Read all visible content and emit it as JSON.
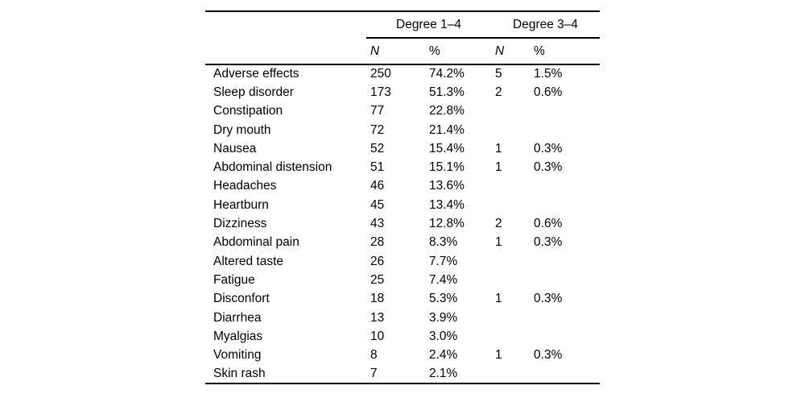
{
  "page": {
    "background": "#ffffff",
    "text_color": "#000000",
    "rule_color": "#000000"
  },
  "table": {
    "group_headers": [
      {
        "label": "Degree 1–4"
      },
      {
        "label": "Degree 3–4"
      }
    ],
    "sub_headers": [
      "N",
      "%",
      "N",
      "%"
    ],
    "rows": [
      {
        "label": "Adverse effects",
        "cells": [
          "250",
          "74.2%",
          "5",
          "1.5%"
        ]
      },
      {
        "label": "Sleep disorder",
        "cells": [
          "173",
          "51.3%",
          "2",
          "0.6%"
        ]
      },
      {
        "label": "Constipation",
        "cells": [
          "77",
          "22.8%",
          "",
          ""
        ]
      },
      {
        "label": "Dry mouth",
        "cells": [
          "72",
          "21.4%",
          "",
          ""
        ]
      },
      {
        "label": "Nausea",
        "cells": [
          "52",
          "15.4%",
          "1",
          "0.3%"
        ]
      },
      {
        "label": "Abdominal distension",
        "cells": [
          "51",
          "15.1%",
          "1",
          "0.3%"
        ]
      },
      {
        "label": "Headaches",
        "cells": [
          "46",
          "13.6%",
          "",
          ""
        ]
      },
      {
        "label": "Heartburn",
        "cells": [
          "45",
          "13.4%",
          "",
          ""
        ]
      },
      {
        "label": "Dizziness",
        "cells": [
          "43",
          "12.8%",
          "2",
          "0.6%"
        ]
      },
      {
        "label": "Abdominal pain",
        "cells": [
          "28",
          "8.3%",
          "1",
          "0.3%"
        ]
      },
      {
        "label": "Altered taste",
        "cells": [
          "26",
          "7.7%",
          "",
          ""
        ]
      },
      {
        "label": "Fatigue",
        "cells": [
          "25",
          "7.4%",
          "",
          ""
        ]
      },
      {
        "label": "Disconfort",
        "cells": [
          "18",
          "5.3%",
          "1",
          "0.3%"
        ]
      },
      {
        "label": "Diarrhea",
        "cells": [
          "13",
          "3.9%",
          "",
          ""
        ]
      },
      {
        "label": "Myalgias",
        "cells": [
          "10",
          "3.0%",
          "",
          ""
        ]
      },
      {
        "label": "Vomiting",
        "cells": [
          "8",
          "2.4%",
          "1",
          "0.3%"
        ]
      },
      {
        "label": "Skin rash",
        "cells": [
          "7",
          "2.1%",
          "",
          ""
        ]
      }
    ]
  }
}
